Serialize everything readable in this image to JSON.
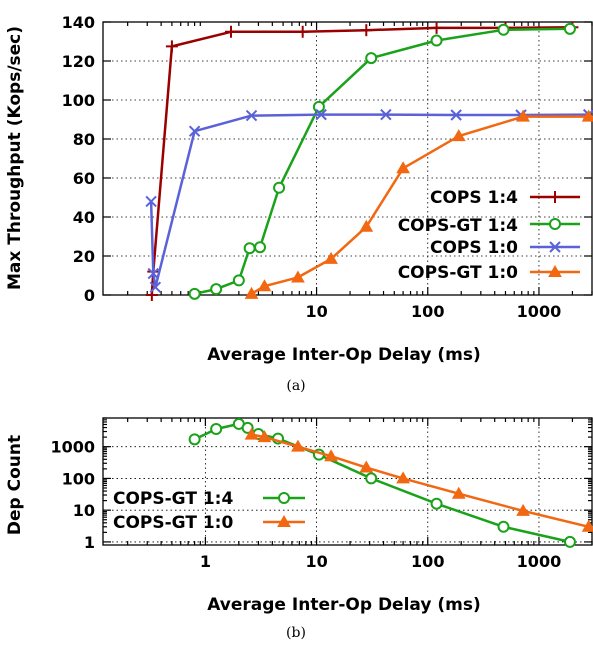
{
  "colors": {
    "cops_1_4": "#9b0000",
    "cops_gt_1_4": "#1aa21a",
    "cops_1_0": "#5b62d8",
    "cops_gt_1_0": "#f26711"
  },
  "captions": {
    "a": "(a)",
    "b": "(b)"
  },
  "chart_data": [
    {
      "id": "a",
      "type": "line",
      "title": "",
      "xlabel": "Average Inter-Op Delay (ms)",
      "ylabel": "Max Throughput (Kops/sec)",
      "xscale": "log",
      "xlim": [
        0.12,
        3000
      ],
      "ylim": [
        0,
        140
      ],
      "xticks": [
        10,
        100,
        1000
      ],
      "yticks": [
        0,
        20,
        40,
        60,
        80,
        100,
        120,
        140
      ],
      "grid": true,
      "legend": "lower-right",
      "series": [
        {
          "name": "COPS 1:4",
          "color_key": "cops_1_4",
          "marker": "plus",
          "x": [
            0.33,
            0.34,
            0.5,
            1.7,
            7.5,
            28,
            120,
            500,
            2000
          ],
          "y": [
            0,
            12,
            127.5,
            135,
            135,
            135.8,
            137,
            137,
            137.3
          ]
        },
        {
          "name": "COPS-GT 1:4",
          "color_key": "cops_gt_1_4",
          "marker": "circle",
          "x": [
            0.8,
            1.25,
            2.0,
            2.5,
            3.1,
            4.5,
            10.5,
            31,
            120,
            480,
            1900
          ],
          "y": [
            0.6,
            3,
            7.5,
            24,
            24.5,
            55,
            96.5,
            121.5,
            130.5,
            136,
            136.5
          ],
          "plot_x": [
            0.8,
            1.25,
            2.0,
            2.5,
            3.1,
            4.6,
            10.5,
            31,
            120,
            480,
            1900
          ]
        },
        {
          "name": "COPS 1:0",
          "color_key": "cops_1_0",
          "marker": "x",
          "x": [
            0.33,
            0.34,
            0.35,
            0.8,
            2.6,
            11,
            42,
            180,
            690,
            2800
          ],
          "y": [
            48,
            11,
            4,
            84,
            92,
            92.5,
            92.5,
            92.3,
            92.3,
            92.5
          ],
          "plot_x": [
            0.325,
            0.34,
            0.355,
            0.8,
            2.6,
            11,
            42,
            180,
            690,
            2800
          ]
        },
        {
          "name": "COPS-GT 1:0",
          "color_key": "cops_gt_1_0",
          "marker": "triangle",
          "x": [
            2.6,
            3.4,
            6.8,
            13.5,
            28,
            60,
            190,
            720,
            2800
          ],
          "y": [
            0.6,
            4.5,
            9,
            18.5,
            35,
            65,
            81.5,
            91.5,
            91.5
          ]
        }
      ]
    },
    {
      "id": "b",
      "type": "line",
      "title": "",
      "xlabel": "Average Inter-Op Delay (ms)",
      "ylabel": "Dep Count",
      "xscale": "log",
      "yscale": "log",
      "xlim": [
        0.12,
        3000
      ],
      "ylim": [
        0.8,
        8000
      ],
      "xticks": [
        1,
        10,
        100,
        1000
      ],
      "yticks": [
        1,
        10,
        100,
        1000
      ],
      "ytick_labels": [
        "1",
        "10",
        "100",
        "1000"
      ],
      "grid": true,
      "legend": "lower-left",
      "series": [
        {
          "name": "COPS-GT 1:4",
          "color_key": "cops_gt_1_4",
          "marker": "circle",
          "x": [
            0.8,
            1.25,
            2.0,
            2.4,
            3.0,
            4.5,
            10.5,
            31,
            120,
            480,
            1900
          ],
          "y": [
            1700,
            3600,
            5200,
            3900,
            2500,
            1800,
            560,
            100,
            16,
            3,
            1
          ]
        },
        {
          "name": "COPS-GT 1:0",
          "color_key": "cops_gt_1_0",
          "marker": "triangle",
          "x": [
            2.6,
            3.4,
            6.8,
            13.5,
            28,
            60,
            190,
            720,
            2800
          ],
          "y": [
            2400,
            2000,
            1000,
            500,
            220,
            100,
            33,
            9.5,
            3
          ]
        }
      ]
    }
  ]
}
